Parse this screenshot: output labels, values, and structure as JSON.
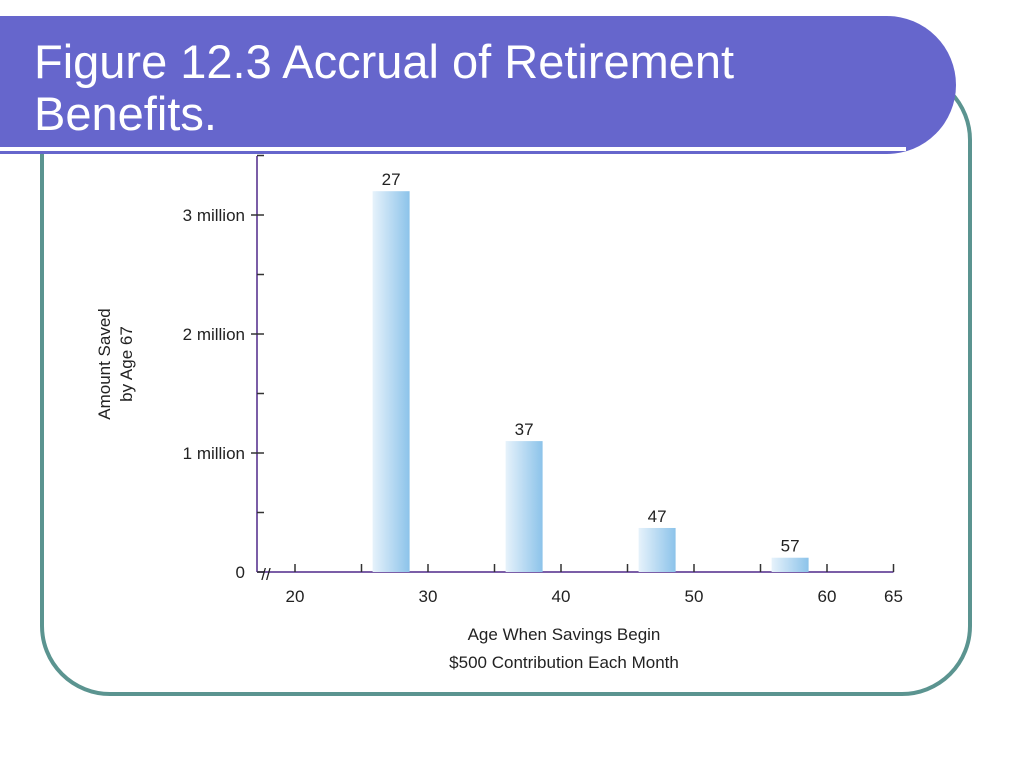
{
  "slide": {
    "title": "Figure 12.3  Accrual of Retirement\nBenefits."
  },
  "colors": {
    "banner": "#6666cc",
    "frame": "#5b9490",
    "axis": "#7b5ea7",
    "bar_light": "#e6f2fb",
    "bar_dark": "#8cc3ea"
  },
  "chart_data": {
    "type": "bar",
    "x": [
      27,
      37,
      47,
      57
    ],
    "values": [
      3200000,
      1100000,
      370000,
      120000
    ],
    "data_labels": [
      "27",
      "37",
      "47",
      "57"
    ],
    "xlabel": "Age When Savings Begin",
    "xlabel_sub": "$500 Contribution Each Month",
    "ylabel": "Amount Saved",
    "ylabel_sub": "by Age 67",
    "x_ticks": [
      "20",
      "30",
      "40",
      "50",
      "60",
      "65"
    ],
    "x_tick_values": [
      20,
      30,
      40,
      50,
      60,
      65
    ],
    "y_ticks": [
      "0",
      "1 million",
      "2 million",
      "3 million"
    ],
    "y_tick_values": [
      0,
      1000000,
      2000000,
      3000000
    ],
    "ylim": [
      0,
      3500000
    ],
    "xlim": [
      20,
      65
    ],
    "axis_break": "//",
    "grid": false
  }
}
